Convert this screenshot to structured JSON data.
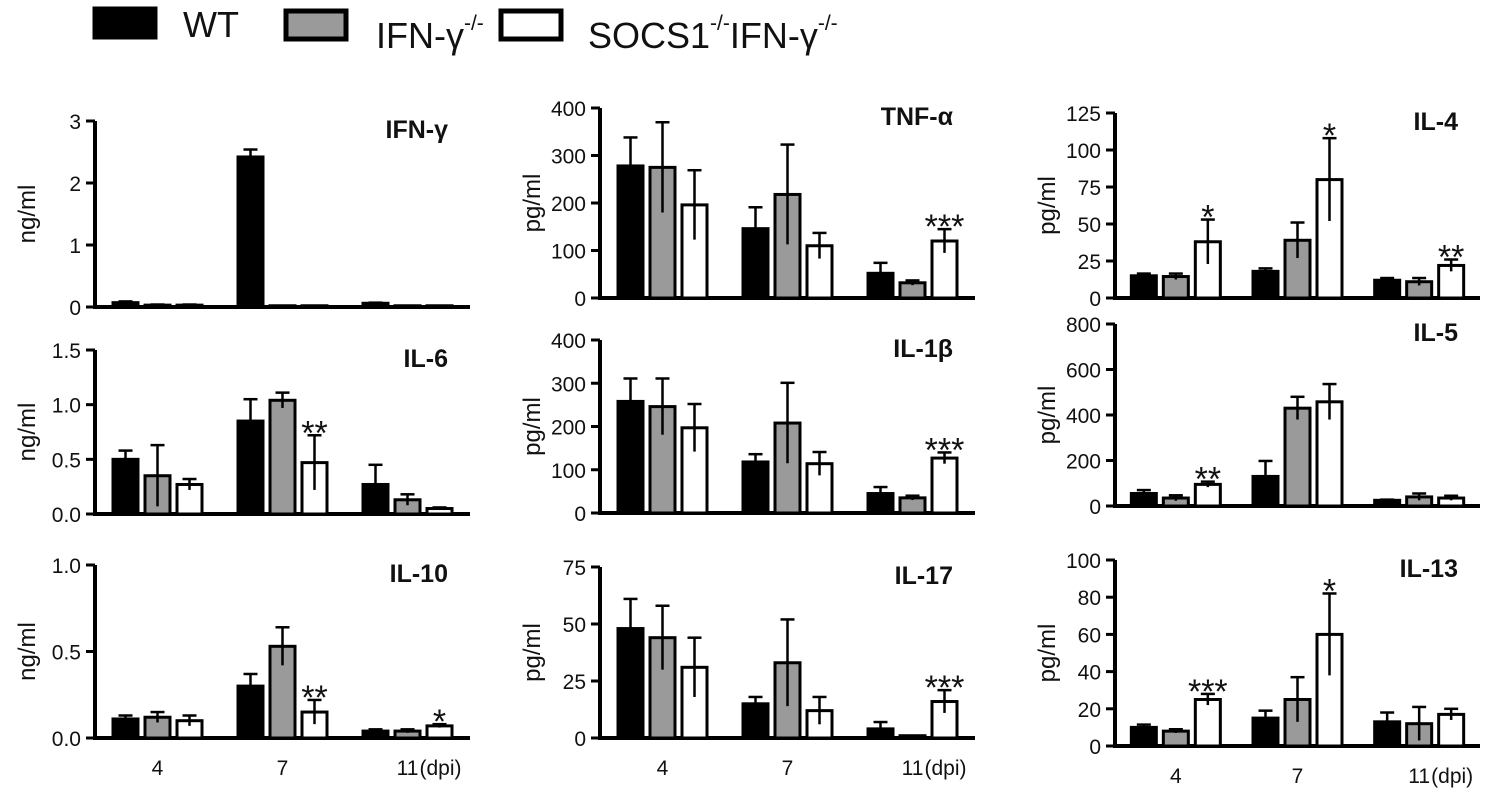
{
  "legend": [
    {
      "label": "WT",
      "sup": "",
      "color": "#000000"
    },
    {
      "label": "IFN-γ",
      "sup": "-/-",
      "color": "#9a9a9a"
    },
    {
      "label": "SOCS1",
      "sup": "-/-",
      "label2": "IFN-γ",
      "sup2": "-/-",
      "color": "#ffffff"
    }
  ],
  "colors": {
    "wt": "#000000",
    "ifng_ko": "#9a9a9a",
    "socs1_ifng_dko": "#ffffff",
    "axis": "#000000"
  },
  "x_unit": "(dpi)",
  "chart_data": [
    {
      "type": "bar",
      "title": "IFN-γ",
      "ylabel": "ng/ml",
      "categories": [
        "4",
        "7",
        "11"
      ],
      "ylim": [
        0,
        3
      ],
      "yticks": [
        "0",
        "1",
        "2",
        "3"
      ],
      "show_xticks": false,
      "series": [
        {
          "values": [
            0.07,
            2.42,
            0.06
          ],
          "errors": [
            0.02,
            0.12,
            0.01
          ]
        },
        {
          "values": [
            0.03,
            0.02,
            0.02
          ],
          "errors": [
            0.01,
            0.0,
            0.0
          ]
        },
        {
          "values": [
            0.03,
            0.02,
            0.02
          ],
          "errors": [
            0.01,
            0.0,
            0.0
          ]
        }
      ],
      "annotations": []
    },
    {
      "type": "bar",
      "title": "TNF-α",
      "ylabel": "pg/ml",
      "categories": [
        "4",
        "7",
        "11"
      ],
      "ylim": [
        0,
        400
      ],
      "yticks": [
        "0",
        "100",
        "200",
        "300",
        "400"
      ],
      "show_xticks": false,
      "series": [
        {
          "values": [
            278,
            146,
            52
          ],
          "errors": [
            60,
            45,
            22
          ]
        },
        {
          "values": [
            275,
            218,
            32
          ],
          "errors": [
            95,
            105,
            5
          ]
        },
        {
          "values": [
            196,
            110,
            120
          ],
          "errors": [
            73,
            27,
            25
          ]
        }
      ],
      "annotations": [
        {
          "category": 2,
          "series": 2,
          "text": "***"
        }
      ]
    },
    {
      "type": "bar",
      "title": "IL-4",
      "ylabel": "pg/ml",
      "categories": [
        "4",
        "7",
        "11"
      ],
      "ylim": [
        0,
        125
      ],
      "yticks": [
        "0",
        "25",
        "50",
        "75",
        "100",
        "125"
      ],
      "show_xticks": false,
      "series": [
        {
          "values": [
            15,
            18,
            12
          ],
          "errors": [
            1.5,
            2,
            1.5
          ]
        },
        {
          "values": [
            14.5,
            39,
            11
          ],
          "errors": [
            2,
            12,
            2.5
          ]
        },
        {
          "values": [
            38,
            80,
            22
          ],
          "errors": [
            15,
            28,
            4
          ]
        }
      ],
      "annotations": [
        {
          "category": 0,
          "series": 2,
          "text": "*"
        },
        {
          "category": 1,
          "series": 2,
          "text": "*"
        },
        {
          "category": 2,
          "series": 2,
          "text": "**"
        }
      ]
    },
    {
      "type": "bar",
      "title": "IL-6",
      "ylabel": "ng/ml",
      "categories": [
        "4",
        "7",
        "11"
      ],
      "ylim": [
        0,
        1.5
      ],
      "yticks": [
        "0.0",
        "0.5",
        "1.0",
        "1.5"
      ],
      "show_xticks": false,
      "series": [
        {
          "values": [
            0.5,
            0.85,
            0.27
          ],
          "errors": [
            0.08,
            0.2,
            0.18
          ]
        },
        {
          "values": [
            0.35,
            1.04,
            0.13
          ],
          "errors": [
            0.28,
            0.07,
            0.05
          ]
        },
        {
          "values": [
            0.27,
            0.47,
            0.05
          ],
          "errors": [
            0.05,
            0.25,
            0.01
          ]
        }
      ],
      "annotations": [
        {
          "category": 1,
          "series": 2,
          "text": "**"
        }
      ]
    },
    {
      "type": "bar",
      "title": "IL-1β",
      "ylabel": "pg/ml",
      "categories": [
        "4",
        "7",
        "11"
      ],
      "ylim": [
        0,
        400
      ],
      "yticks": [
        "0",
        "100",
        "200",
        "300",
        "400"
      ],
      "show_xticks": false,
      "series": [
        {
          "values": [
            258,
            118,
            45
          ],
          "errors": [
            53,
            18,
            15
          ]
        },
        {
          "values": [
            246,
            208,
            35
          ],
          "errors": [
            65,
            93,
            5
          ]
        },
        {
          "values": [
            197,
            114,
            127
          ],
          "errors": [
            55,
            27,
            13
          ]
        }
      ],
      "annotations": [
        {
          "category": 2,
          "series": 2,
          "text": "***"
        }
      ]
    },
    {
      "type": "bar",
      "title": "IL-5",
      "ylabel": "pg/ml",
      "categories": [
        "4",
        "7",
        "11"
      ],
      "ylim": [
        0,
        800
      ],
      "yticks": [
        "0",
        "200",
        "400",
        "600",
        "800"
      ],
      "show_xticks": false,
      "series": [
        {
          "values": [
            55,
            130,
            25
          ],
          "errors": [
            15,
            68,
            3
          ]
        },
        {
          "values": [
            35,
            430,
            40
          ],
          "errors": [
            12,
            50,
            15
          ]
        },
        {
          "values": [
            95,
            458,
            35
          ],
          "errors": [
            12,
            78,
            10
          ]
        }
      ],
      "annotations": [
        {
          "category": 0,
          "series": 2,
          "text": "**"
        }
      ]
    },
    {
      "type": "bar",
      "title": "IL-10",
      "ylabel": "ng/ml",
      "categories": [
        "4",
        "7",
        "11"
      ],
      "ylim": [
        0,
        1.0
      ],
      "yticks": [
        "0.0",
        "0.5",
        "1.0"
      ],
      "show_xticks": true,
      "series": [
        {
          "values": [
            0.11,
            0.3,
            0.04
          ],
          "errors": [
            0.02,
            0.07,
            0.01
          ]
        },
        {
          "values": [
            0.12,
            0.53,
            0.04
          ],
          "errors": [
            0.03,
            0.11,
            0.01
          ]
        },
        {
          "values": [
            0.1,
            0.15,
            0.07
          ],
          "errors": [
            0.03,
            0.07,
            0.01
          ]
        }
      ],
      "annotations": [
        {
          "category": 1,
          "series": 2,
          "text": "**"
        },
        {
          "category": 2,
          "series": 2,
          "text": "*"
        }
      ]
    },
    {
      "type": "bar",
      "title": "IL-17",
      "ylabel": "pg/ml",
      "categories": [
        "4",
        "7",
        "11"
      ],
      "ylim": [
        0,
        75
      ],
      "yticks": [
        "0",
        "25",
        "50",
        "75"
      ],
      "show_xticks": true,
      "series": [
        {
          "values": [
            48,
            15,
            4
          ],
          "errors": [
            13,
            3,
            3
          ]
        },
        {
          "values": [
            44,
            33,
            1
          ],
          "errors": [
            14,
            19,
            0
          ]
        },
        {
          "values": [
            31,
            12,
            16
          ],
          "errors": [
            13,
            6,
            5
          ]
        }
      ],
      "annotations": [
        {
          "category": 2,
          "series": 2,
          "text": "***"
        }
      ]
    },
    {
      "type": "bar",
      "title": "IL-13",
      "ylabel": "pg/ml",
      "categories": [
        "4",
        "7",
        "11"
      ],
      "ylim": [
        0,
        100
      ],
      "yticks": [
        "0",
        "20",
        "40",
        "60",
        "80",
        "100"
      ],
      "show_xticks": true,
      "series": [
        {
          "values": [
            10,
            15,
            13
          ],
          "errors": [
            1.5,
            4,
            5
          ]
        },
        {
          "values": [
            8,
            25,
            12
          ],
          "errors": [
            1,
            12,
            9
          ]
        },
        {
          "values": [
            25,
            60,
            17
          ],
          "errors": [
            3,
            22,
            3
          ]
        }
      ],
      "annotations": [
        {
          "category": 0,
          "series": 2,
          "text": "***"
        },
        {
          "category": 1,
          "series": 2,
          "text": "*"
        }
      ]
    }
  ]
}
